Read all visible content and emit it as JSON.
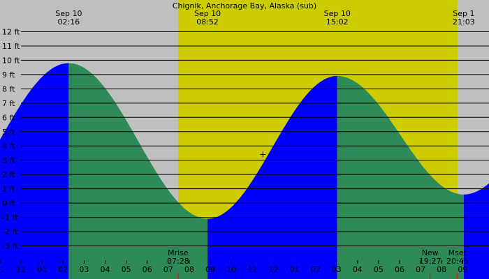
{
  "chart_data": {
    "type": "area",
    "title": "Chignik, Anchorage Bay, Alaska (sub)",
    "y_unit": "ft",
    "ylim": [
      -4,
      13
    ],
    "y_ticks": [
      12,
      11,
      10,
      9,
      8,
      7,
      6,
      5,
      4,
      3,
      2,
      1,
      0,
      -1,
      -2,
      -3
    ],
    "x_hour_range": [
      -1,
      22.25
    ],
    "hour_ticks": [
      {
        "h": -1,
        "label": "11"
      },
      {
        "h": 0,
        "label": "12"
      },
      {
        "h": 1,
        "label": "01"
      },
      {
        "h": 2,
        "label": "02"
      },
      {
        "h": 3,
        "label": "03"
      },
      {
        "h": 4,
        "label": "04"
      },
      {
        "h": 5,
        "label": "05"
      },
      {
        "h": 6,
        "label": "06"
      },
      {
        "h": 7,
        "label": "07"
      },
      {
        "h": 8,
        "label": "08"
      },
      {
        "h": 9,
        "label": "09"
      },
      {
        "h": 10,
        "label": "10"
      },
      {
        "h": 11,
        "label": "11"
      },
      {
        "h": 12,
        "label": "12"
      },
      {
        "h": 13,
        "label": "01"
      },
      {
        "h": 14,
        "label": "02"
      },
      {
        "h": 15,
        "label": "03"
      },
      {
        "h": 16,
        "label": "04"
      },
      {
        "h": 17,
        "label": "05"
      },
      {
        "h": 18,
        "label": "06"
      },
      {
        "h": 19,
        "label": "07"
      },
      {
        "h": 20,
        "label": "08"
      },
      {
        "h": 21,
        "label": "09"
      }
    ],
    "daylight": {
      "start": "07:28",
      "end": "20:45"
    },
    "extremes": [
      {
        "date": "Sep 10",
        "time": "02:16",
        "type": "high",
        "height_ft": 9.8
      },
      {
        "date": "Sep 10",
        "time": "08:52",
        "type": "low",
        "height_ft": -1.1
      },
      {
        "date": "Sep 10",
        "time": "15:02",
        "type": "high",
        "height_ft": 8.9
      },
      {
        "date": "Sep 1",
        "time": "21:03",
        "type": "low",
        "height_ft": 0.6
      }
    ],
    "events": [
      {
        "label": "Mrise",
        "time": "07:28"
      },
      {
        "label": "New",
        "time": "19:27"
      },
      {
        "label": "Mset",
        "time": "20:45"
      }
    ],
    "current": {
      "time": "11:30",
      "height_ft": 3.4
    },
    "colors": {
      "night": "#c0c0c0",
      "day": "#cccc00",
      "rising": "#0000ff",
      "falling": "#2e8b57",
      "grid": "#000000",
      "event_tick": "#ff0000"
    }
  }
}
